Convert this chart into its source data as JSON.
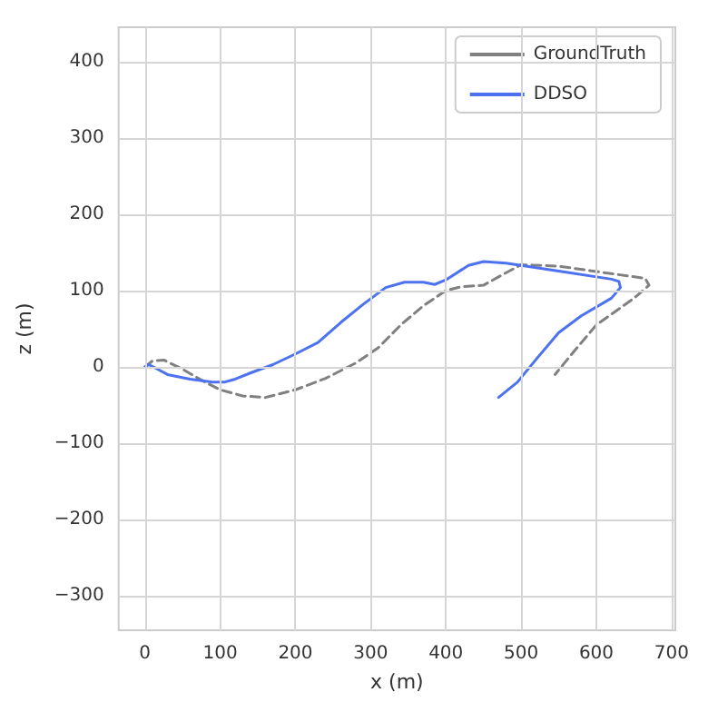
{
  "chart_data": {
    "type": "line",
    "xlabel": "x (m)",
    "ylabel": "z (m)",
    "xlim": [
      -35,
      705
    ],
    "ylim": [
      -345,
      445
    ],
    "xticks": [
      0,
      100,
      200,
      300,
      400,
      500,
      600,
      700
    ],
    "yticks": [
      -300,
      -200,
      -100,
      0,
      100,
      200,
      300,
      400
    ],
    "grid": true,
    "legend": "top right",
    "marker": "none",
    "series": [
      {
        "name": "GroundTruth",
        "color": "#808080",
        "line_style": "dashed",
        "x": [
          0,
          10,
          25,
          50,
          80,
          100,
          130,
          160,
          200,
          240,
          280,
          310,
          340,
          370,
          400,
          420,
          450,
          470,
          500,
          550,
          600,
          665,
          670,
          650,
          600,
          570,
          545
        ],
        "values": [
          0,
          8,
          9,
          -3,
          -20,
          -30,
          -38,
          -40,
          -30,
          -15,
          5,
          25,
          55,
          80,
          100,
          105,
          107,
          118,
          134,
          132,
          125,
          116,
          107,
          90,
          55,
          20,
          -10
        ]
      },
      {
        "name": "DDSO",
        "color": "#4c72f0",
        "line_style": "solid",
        "x": [
          0,
          5,
          15,
          30,
          60,
          90,
          105,
          120,
          140,
          170,
          200,
          230,
          260,
          290,
          320,
          345,
          370,
          385,
          400,
          430,
          450,
          480,
          500,
          560,
          620,
          630,
          632,
          620,
          580,
          550,
          520,
          495,
          470
        ],
        "values": [
          0,
          3,
          -2,
          -10,
          -16,
          -20,
          -20,
          -16,
          -8,
          3,
          17,
          32,
          58,
          82,
          104,
          111,
          111,
          108,
          114,
          133,
          138,
          136,
          133,
          124,
          115,
          112,
          104,
          90,
          67,
          45,
          10,
          -20,
          -40
        ]
      }
    ]
  }
}
